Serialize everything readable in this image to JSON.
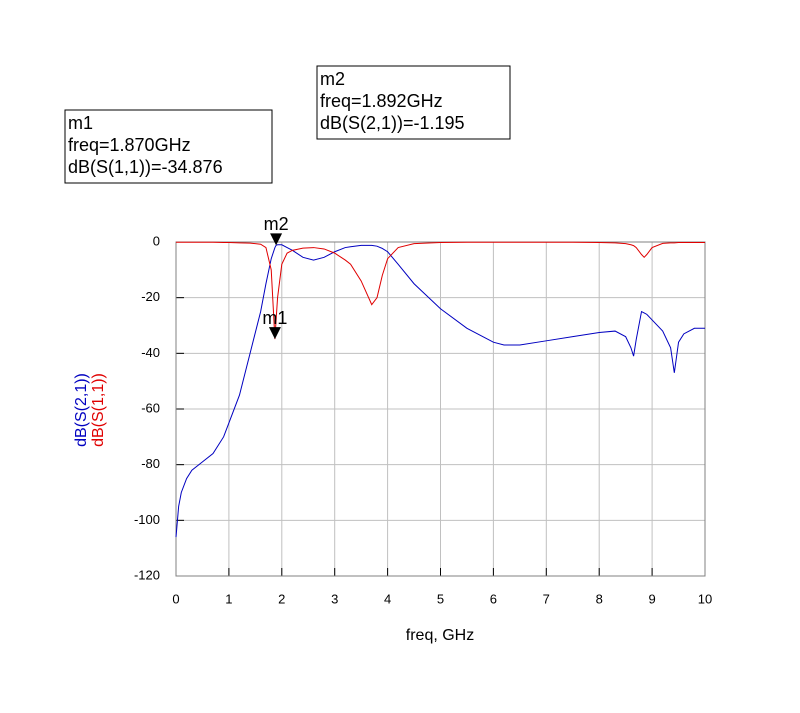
{
  "chart_data": {
    "type": "line",
    "xlabel": "freq, GHz",
    "x": [
      0,
      0.05,
      0.1,
      0.2,
      0.3,
      0.5,
      0.7,
      0.9,
      1.0,
      1.2,
      1.4,
      1.6,
      1.7,
      1.8,
      1.87,
      1.892,
      1.92,
      2.0,
      2.1,
      2.2,
      2.4,
      2.6,
      2.8,
      3.0,
      3.2,
      3.3,
      3.5,
      3.7,
      3.8,
      3.9,
      4.0,
      4.2,
      4.5,
      5.0,
      5.5,
      6.0,
      6.2,
      6.5,
      7.0,
      7.5,
      8.0,
      8.3,
      8.5,
      8.6,
      8.65,
      8.7,
      8.8,
      8.85,
      8.9,
      9.0,
      9.2,
      9.35,
      9.42,
      9.5,
      9.6,
      9.8,
      10
    ],
    "series": [
      {
        "name": "dB(S(2,1))",
        "color": "#0000c0",
        "values": [
          -106,
          -95,
          -90,
          -85,
          -82,
          -79,
          -76,
          -70,
          -65,
          -55,
          -40,
          -25,
          -15,
          -6,
          -2,
          -1.195,
          -1,
          -1,
          -2,
          -3,
          -5.5,
          -6.5,
          -5.5,
          -3.5,
          -2,
          -1.7,
          -1.2,
          -1.2,
          -1.5,
          -2.3,
          -3.5,
          -8,
          -15,
          -24,
          -31,
          -36,
          -37,
          -37,
          -35.5,
          -34,
          -32.5,
          -32,
          -34,
          -38,
          -41,
          -35,
          -25,
          -25.5,
          -26,
          -28,
          -32,
          -38,
          -47,
          -36,
          -33,
          -31,
          -31
        ]
      },
      {
        "name": "dB(S(1,1))",
        "color": "#e00000",
        "values": [
          -0.1,
          -0.1,
          -0.1,
          -0.1,
          -0.1,
          -0.1,
          -0.1,
          -0.2,
          -0.2,
          -0.3,
          -0.4,
          -0.8,
          -2,
          -10,
          -34.876,
          -28,
          -20,
          -8,
          -4,
          -3,
          -2.2,
          -2,
          -2.5,
          -4,
          -6.5,
          -8,
          -14,
          -22.5,
          -20,
          -12,
          -6,
          -2,
          -0.6,
          -0.2,
          -0.1,
          -0.1,
          -0.1,
          -0.1,
          -0.1,
          -0.1,
          -0.2,
          -0.3,
          -0.6,
          -1,
          -1.3,
          -2,
          -4.5,
          -5.5,
          -4.5,
          -2,
          -0.5,
          -0.3,
          -0.3,
          -0.2,
          -0.2,
          -0.2,
          -0.2
        ]
      }
    ],
    "xlim": [
      0,
      10
    ],
    "xticks": [
      0,
      1,
      2,
      3,
      4,
      5,
      6,
      7,
      8,
      9,
      10
    ],
    "ylim": [
      -120,
      0
    ],
    "yticks": [
      0,
      -20,
      -40,
      -60,
      -80,
      -100,
      -120
    ],
    "grid": true,
    "markers": [
      {
        "name": "m1",
        "freq": "freq=1.870GHz",
        "readout": "dB(S(1,1))=-34.876",
        "x": 1.87,
        "y": -34.876
      },
      {
        "name": "m2",
        "freq": "freq=1.892GHz",
        "readout": "dB(S(2,1))=-1.195",
        "x": 1.892,
        "y": -1.195
      }
    ]
  }
}
